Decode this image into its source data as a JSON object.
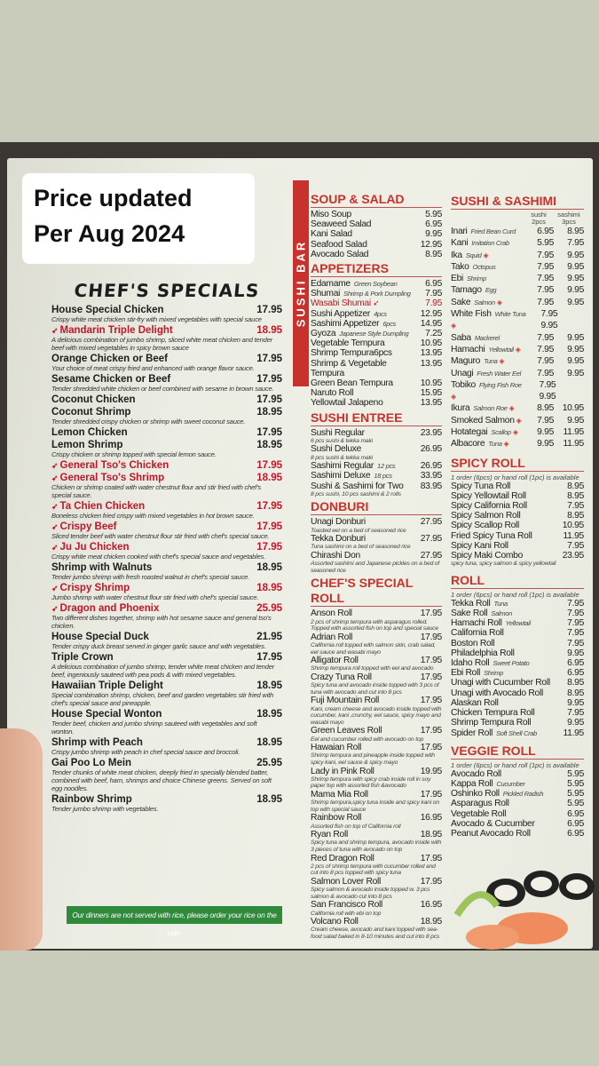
{
  "overlay": {
    "line1": "Price updated",
    "line2": "Per Aug 2024"
  },
  "chefs_specials": {
    "title": "CHEF'S SPECIALS",
    "items": [
      {
        "name": "House Special Chicken",
        "price": "17.95",
        "desc": "Crispy white meat chicken stir-fry with mixed vegetables with special sauce"
      },
      {
        "name": "Mandarin Triple Delight",
        "price": "18.95",
        "spicy": true,
        "desc": "A delicious combination of jumbo shrimp, sliced white meat chicken and tender beef with mixed vegetables in spicy brown sauce"
      },
      {
        "name": "Orange Chicken or Beef",
        "price": "17.95",
        "desc": "Your choice of meat crispy fried and enhanced with orange flavor sauce."
      },
      {
        "name": "Sesame Chicken or Beef",
        "price": "17.95",
        "desc": "Tender shredded white chicken or beef combined with sesame in brown sauce."
      },
      {
        "name": "Coconut Chicken",
        "price": "17.95"
      },
      {
        "name": "Coconut Shrimp",
        "price": "18.95",
        "desc": "Tender shredded crispy chicken or shrimp with sweet coconut sauce."
      },
      {
        "name": "Lemon Chicken",
        "price": "17.95"
      },
      {
        "name": "Lemon Shrimp",
        "price": "18.95",
        "desc": "Crispy chicken or shrimp topped with special lemon sauce."
      },
      {
        "name": "General Tso's Chicken",
        "price": "17.95",
        "spicy": true
      },
      {
        "name": "General Tso's Shrimp",
        "price": "18.95",
        "spicy": true,
        "desc": "Chicken or shrimp coated with water chestnut flour and stir fried with chef's special sauce."
      },
      {
        "name": "Ta Chien Chicken",
        "price": "17.95",
        "spicy": true,
        "desc": "Boneless chicken fried crispy with mixed vegetables in hot brown sauce."
      },
      {
        "name": "Crispy Beef",
        "price": "17.95",
        "spicy": true,
        "desc": "Sliced tender beef with water chestnut flour stir fried with chef's special sauce."
      },
      {
        "name": "Ju Ju Chicken",
        "price": "17.95",
        "spicy": true,
        "desc": "Crispy white meat chicken cooked with chef's special sauce and vegetables."
      },
      {
        "name": "Shrimp with Walnuts",
        "price": "18.95",
        "desc": "Tender jumbo shrimp with fresh roasted walnut in chef's special sauce."
      },
      {
        "name": "Crispy Shrimp",
        "price": "18.95",
        "spicy": true,
        "desc": "Jumbo shrimp with water chestnut flour stir fried with chef's special sauce."
      },
      {
        "name": "Dragon and Phoenix",
        "price": "25.95",
        "spicy": true,
        "desc": "Two different dishes together, shrimp with hot sesame sauce and general tso's chicken."
      },
      {
        "name": "House Special Duck",
        "price": "21.95",
        "desc": "Tender crispy duck breast served in ginger garlic sauce and with vegetables."
      },
      {
        "name": "Triple Crown",
        "price": "17.95",
        "desc": "A delicious combination of jumbo shrimp, tender white meat chicken and tender beef, ingeniously sauteed with pea pods & with mixed vegetables."
      },
      {
        "name": "Hawaiian Triple Delight",
        "price": "18.95",
        "desc": "Special combination shrimp, chicken, beef and garden vegetables stir fried with chef's special sauce and pineapple."
      },
      {
        "name": "House Special Wonton",
        "price": "18.95",
        "desc": "Tender beef, chicken and jumbo shrimp sauteed with vegetables and soft wonton."
      },
      {
        "name": "Shrimp with Peach",
        "price": "18.95",
        "desc": "Crispy jumbo shrimp with peach in chef special sauce and broccoli."
      },
      {
        "name": "Gai Poo Lo Mein",
        "price": "25.95",
        "desc": "Tender chunks of white meat chicken, deeply fried in specially blended batter, combined with beef, ham, shrimps and choice Chinese greens. Served on soft egg noodles."
      },
      {
        "name": "Rainbow Shrimp",
        "price": "18.95",
        "desc": "Tender jumbo shrimp with vegetables."
      }
    ],
    "footer": "Our dinners are not served with rice,  please order your rice on the side."
  },
  "sushi_bar_label": "SUSHI BAR",
  "middle": [
    {
      "title": "SOUP & SALAD",
      "items": [
        {
          "name": "Miso Soup",
          "price": "5.95"
        },
        {
          "name": "Seaweed Salad",
          "price": "6.95"
        },
        {
          "name": "Kani Salad",
          "price": "9.95"
        },
        {
          "name": "Seafood Salad",
          "price": "12.95"
        },
        {
          "name": "Avocado Salad",
          "price": "8.95"
        }
      ]
    },
    {
      "title": "APPETIZERS",
      "items": [
        {
          "name": "Edamame",
          "note": "Green Soybean",
          "price": "6.95"
        },
        {
          "name": "Shumai",
          "note": "Shrimp & Pork Dumpling",
          "price": "7.95"
        },
        {
          "name": "Wasabi Shumai",
          "price": "7.95",
          "spicy": true
        },
        {
          "name": "Sushi Appetizer",
          "note": "4pcs",
          "price": "12.95"
        },
        {
          "name": "Sashimi Appetizer",
          "note": "6pcs",
          "price": "14.95"
        },
        {
          "name": "Gyoza",
          "note": "Japanese Style Dumpling",
          "price": "7.25"
        },
        {
          "name": "Vegetable Tempura",
          "price": "10.95"
        },
        {
          "name": "Shrimp Tempura6pcs",
          "price": "13.95"
        },
        {
          "name": "Shrimp & Vegetable Tempura",
          "price": "13.95"
        },
        {
          "name": "Green Bean Tempura",
          "price": "10.95"
        },
        {
          "name": "Naruto Roll",
          "price": "15.95"
        },
        {
          "name": "Yellowtail Jalapeno",
          "price": "13.95"
        }
      ]
    },
    {
      "title": "SUSHI ENTREE",
      "items": [
        {
          "name": "Sushi Regular",
          "price": "23.95",
          "desc": "6 pcs sushi & tekka maki"
        },
        {
          "name": "Sushi Deluxe",
          "price": "26.95",
          "desc": "8 pcs sushi & tekka maki"
        },
        {
          "name": "Sashimi Regular",
          "note": "12 pcs",
          "price": "26.95"
        },
        {
          "name": "Sashimi Deluxe",
          "note": "18 pcs",
          "price": "33.95"
        },
        {
          "name": "Sushi & Sashimi for Two",
          "price": "83.95",
          "desc": "8 pcs sushi, 10 pcs sashimi & 2 rolls"
        }
      ]
    },
    {
      "title": "DONBURI",
      "items": [
        {
          "name": "Unagi Donburi",
          "price": "27.95",
          "desc": "Toasted eel on a bed of seasoned rice"
        },
        {
          "name": "Tekka Donburi",
          "price": "27.95",
          "desc": "Tuna sashimi on a bed of seasoned rice"
        },
        {
          "name": "Chirashi Don",
          "price": "27.95",
          "desc": "Assorted sashimi and Japanese pickles on a bed of seasoned rice"
        }
      ]
    },
    {
      "title": "CHEF'S SPECIAL ROLL",
      "items": [
        {
          "name": "Anson Roll",
          "price": "17.95",
          "desc": "2 pcs of shrimp tempura with asparagus rolled. Topped with assorted fish on top and special sauce"
        },
        {
          "name": "Adrian Roll",
          "price": "17.95",
          "desc": "California roll topped with salmon skin, crab salad, eel sauce and wasabi mayo"
        },
        {
          "name": "Alligator Roll",
          "price": "17.95",
          "desc": "Shrimp tempura roll topped with eel and avocado"
        },
        {
          "name": "Crazy Tuna Roll",
          "price": "17.95",
          "desc": "Spicy tuna and avocado inside topped with 3 pcs of tuna with avocado and cut into 8 pcs"
        },
        {
          "name": "Fuji Mountain Roll",
          "price": "17.95",
          "desc": "Kani, cream cheese and avocado inside topped with cucumber, kani ,crunchy, eel sauce, spicy mayo and wasabi mayo"
        },
        {
          "name": "Green Leaves Roll",
          "price": "17.95",
          "desc": "Eel and cucumber rolled with avocado on top"
        },
        {
          "name": "Hawaian Roll",
          "price": "17.95",
          "desc": "Shrimp tempura and pineapple inside topped with spicy kani, eel sauce & spicy mayo"
        },
        {
          "name": "Lady in Pink Roll",
          "price": "19.95",
          "desc": "Shrimp tempura with spicy crab inside roll in soy paper top with assorted fish &avocado"
        },
        {
          "name": "Mama Mia Roll",
          "price": "17.95",
          "desc": "Shrimp tempura,spicy tuna inside and spicy kani on top with special sauce"
        },
        {
          "name": "Rainbow Roll",
          "price": "16.95",
          "desc": "Assorted fish on top of California roll"
        },
        {
          "name": "Ryan Roll",
          "price": "18.95",
          "desc": "Spicy tuna and shrimp tempura, avocado inside with 3 pieces of tuna with avocado on top"
        },
        {
          "name": "Red Dragon Roll",
          "price": "17.95",
          "desc": "2 pcs of shrimp tempura with cucumber rolled and cut into 8 pcs topped with spicy tuna"
        },
        {
          "name": "Salmon Lover Roll",
          "price": "17.95",
          "desc": "Spicy salmon & avocado inside topped w. 3 pcs salmon & avocado cut into 8 pcs"
        },
        {
          "name": "San Francisco Roll",
          "price": "16.95",
          "desc": "California roll with ebi on top"
        },
        {
          "name": "Volcano Roll",
          "price": "18.95",
          "desc": "Cream cheese, avocado and kani topped with sea-food salad baked in 8-10 minutes and cut into 8 pcs"
        }
      ]
    }
  ],
  "sushi_sashimi": {
    "title": "SUSHI & SASHIMI",
    "col1": "sushi",
    "col1_sub": "2pcs",
    "col2": "sashimi",
    "col2_sub": "3pcs",
    "items": [
      {
        "name": "Inari",
        "note": "Fried Bean Curd",
        "sushi": "6.95",
        "sashimi": "8.95"
      },
      {
        "name": "Kani",
        "note": "Imitation Crab",
        "sushi": "5.95",
        "sashimi": "7.95"
      },
      {
        "name": "Ika",
        "note": "Squid",
        "raw": true,
        "sushi": "7.95",
        "sashimi": "9.95"
      },
      {
        "name": "Tako",
        "note": "Octopus",
        "sushi": "7.95",
        "sashimi": "9.95"
      },
      {
        "name": "Ebi",
        "note": "Shrimp",
        "sushi": "7.95",
        "sashimi": "9.95"
      },
      {
        "name": "Tamago",
        "note": "Egg",
        "sushi": "7.95",
        "sashimi": "9.95"
      },
      {
        "name": "Sake",
        "note": "Salmon",
        "raw": true,
        "sushi": "7.95",
        "sashimi": "9.95"
      },
      {
        "name": "White Fish",
        "note": "White Tuna",
        "raw": true,
        "sushi": "7.95",
        "sashimi": "9.95"
      },
      {
        "name": "Saba",
        "note": "Mackerel",
        "sushi": "7.95",
        "sashimi": "9.95"
      },
      {
        "name": "Hamachi",
        "note": "Yellowtail",
        "raw": true,
        "sushi": "7.95",
        "sashimi": "9.95"
      },
      {
        "name": "Maguro",
        "note": "Tuna",
        "raw": true,
        "sushi": "7.95",
        "sashimi": "9.95"
      },
      {
        "name": "Unagi",
        "note": "Fresh Water Eel",
        "sushi": "7.95",
        "sashimi": "9.95"
      },
      {
        "name": "Tobiko",
        "note": "Flying Fish Roe",
        "raw": true,
        "sushi": "7.95",
        "sashimi": "9.95"
      },
      {
        "name": "Ikura",
        "note": "Salmon Roe",
        "raw": true,
        "sushi": "8.95",
        "sashimi": "10.95"
      },
      {
        "name": "Smoked Salmon",
        "raw": true,
        "sushi": "7.95",
        "sashimi": "9.95"
      },
      {
        "name": "Hotategai",
        "note": "Scallop",
        "raw": true,
        "sushi": "9.95",
        "sashimi": "11.95"
      },
      {
        "name": "Albacore",
        "note": "Tuna",
        "raw": true,
        "sushi": "9.95",
        "sashimi": "11.95"
      }
    ]
  },
  "right": [
    {
      "title": "SPICY ROLL",
      "sub": "1 order (6pcs) or hand roll (1pc) is available",
      "items": [
        {
          "name": "Spicy Tuna Roll",
          "price": "8.95"
        },
        {
          "name": "Spicy Yellowtail Roll",
          "price": "8.95"
        },
        {
          "name": "Spicy California Roll",
          "price": "7.95"
        },
        {
          "name": "Spicy Salmon Roll",
          "price": "8.95"
        },
        {
          "name": "Spicy Scallop Roll",
          "price": "10.95"
        },
        {
          "name": "Fried Spicy Tuna Roll",
          "price": "11.95"
        },
        {
          "name": "Spicy Kani Roll",
          "price": "7.95"
        },
        {
          "name": "Spicy Maki Combo",
          "price": "23.95",
          "desc": "spicy tuna, spicy salmon & spicy yellowtail"
        }
      ]
    },
    {
      "title": "ROLL",
      "sub": "1 order (6pcs) or hand roll (1pc) is available",
      "items": [
        {
          "name": "Tekka Roll",
          "note": "Tuna",
          "price": "7.95"
        },
        {
          "name": "Sake Roll",
          "note": "Salmon",
          "price": "7.95"
        },
        {
          "name": "Hamachi Roll",
          "note": "Yellowtail",
          "price": "7.95"
        },
        {
          "name": "California Roll",
          "price": "7.95"
        },
        {
          "name": "Boston Roll",
          "price": "7.95"
        },
        {
          "name": "Philadelphia Roll",
          "price": "9.95"
        },
        {
          "name": "Idaho Roll",
          "note": "Sweet Potato",
          "price": "6.95"
        },
        {
          "name": "Ebi Roll",
          "note": "Shrimp",
          "price": "6.95"
        },
        {
          "name": "Unagi with Cucumber Roll",
          "price": "8.95"
        },
        {
          "name": "Unagi with Avocado Roll",
          "price": "8.95"
        },
        {
          "name": "Alaskan Roll",
          "price": "9.95"
        },
        {
          "name": "Chicken Tempura Roll",
          "price": "7.95"
        },
        {
          "name": "Shrimp Tempura Roll",
          "price": "9.95"
        },
        {
          "name": "Spider Roll",
          "note": "Soft Shell Crab",
          "price": "11.95"
        }
      ]
    },
    {
      "title": "VEGGIE ROLL",
      "sub": "1 order (6pcs) or hand roll (1pc) is available",
      "items": [
        {
          "name": "Avocado Roll",
          "price": "5.95"
        },
        {
          "name": "Kappa Roll",
          "note": "Cucumber",
          "price": "5.95"
        },
        {
          "name": "Oshinko Roll",
          "note": "Pickled Radish",
          "price": "5.95"
        },
        {
          "name": "Asparagus Roll",
          "price": "5.95"
        },
        {
          "name": "Vegetable Roll",
          "price": "6.95"
        },
        {
          "name": "Avocado & Cucumber",
          "price": "6.95"
        },
        {
          "name": "Peanut Avocado Roll",
          "price": "6.95"
        }
      ]
    }
  ],
  "colors": {
    "accent_red": "#c8322c",
    "footer_green": "#2f8a3c"
  }
}
